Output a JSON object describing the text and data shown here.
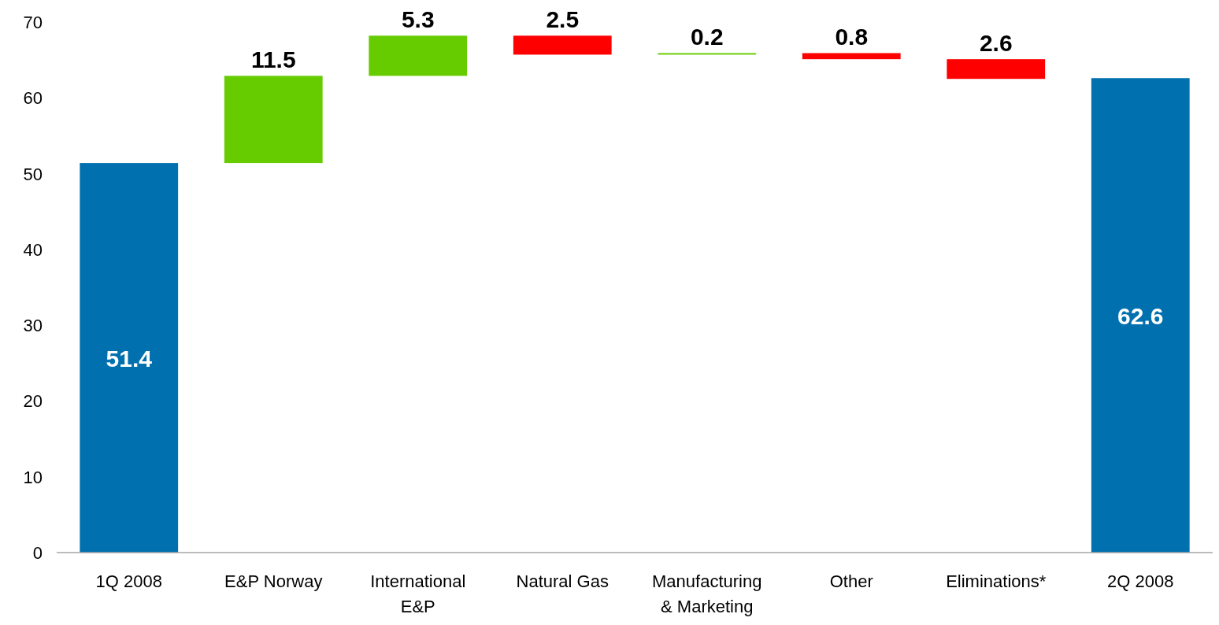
{
  "chart_data": {
    "type": "bar",
    "categories": [
      "1Q 2008",
      "E&P Norway",
      "International E&P",
      "Natural Gas",
      "Manufacturing & Marketing",
      "Other",
      "Eliminations*",
      "2Q 2008"
    ],
    "values": [
      51.4,
      11.5,
      5.3,
      -2.5,
      0.2,
      -0.8,
      -2.6,
      62.6
    ],
    "base": [
      0,
      51.4,
      62.9,
      68.2,
      65.7,
      65.9,
      65.1,
      0
    ],
    "colors": [
      "#0070ae",
      "#66cc00",
      "#66cc00",
      "#ff0000",
      "#66cc00",
      "#ff0000",
      "#ff0000",
      "#0070ae"
    ],
    "value_labels": [
      "51.4",
      "11.5",
      "5.3",
      "2.5",
      "0.2",
      "0.8",
      "2.6",
      "62.6"
    ],
    "ylim": [
      0,
      70
    ],
    "yticks": [
      0,
      10,
      20,
      30,
      40,
      50,
      60,
      70
    ],
    "grid": false
  }
}
